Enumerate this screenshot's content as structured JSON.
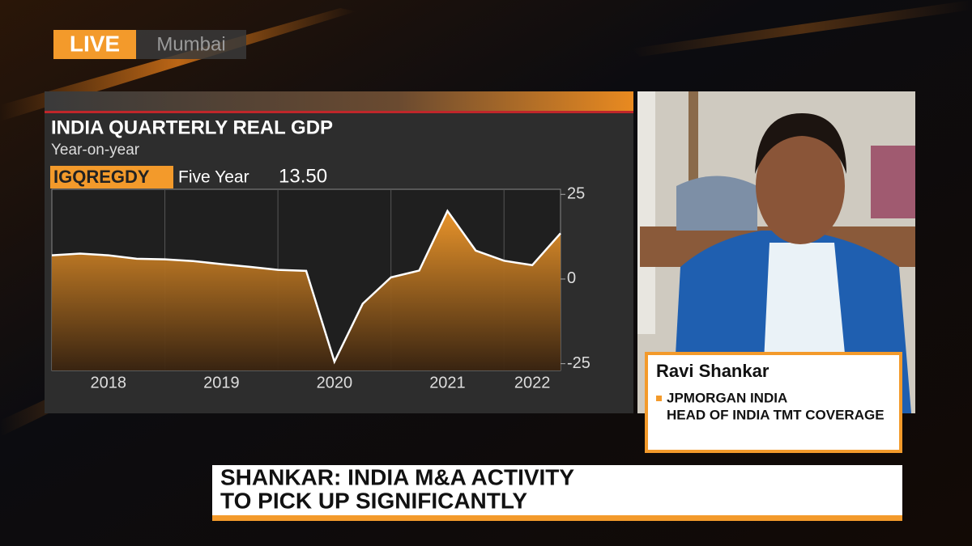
{
  "live": "LIVE",
  "location": "Mumbai",
  "chart_data": {
    "type": "area",
    "title": "INDIA QUARTERLY REAL GDP",
    "subtitle": "Year-on-year",
    "ticker": "IGQREGDY",
    "period": "Five Year",
    "last_value": "13.50",
    "x": [
      2018,
      2018.25,
      2018.5,
      2018.75,
      2019,
      2019.25,
      2019.5,
      2019.75,
      2020,
      2020.25,
      2020.5,
      2020.75,
      2021,
      2021.25,
      2021.5,
      2021.75,
      2022,
      2022.25,
      2022.5
    ],
    "values": [
      7.0,
      7.5,
      7.0,
      6.0,
      5.8,
      5.3,
      4.4,
      3.6,
      2.7,
      2.4,
      -24.4,
      -7.3,
      0.5,
      2.5,
      20.1,
      8.4,
      5.4,
      4.1,
      13.5
    ],
    "color": "#f39a2b",
    "xlim": [
      2018,
      2022.5
    ],
    "xticks": [
      {
        "value": 2018.5,
        "label": "2018"
      },
      {
        "value": 2019.5,
        "label": "2019"
      },
      {
        "value": 2020.5,
        "label": "2020"
      },
      {
        "value": 2021.5,
        "label": "2021"
      },
      {
        "value": 2022.25,
        "label": "2022"
      }
    ],
    "xgrid": [
      2019,
      2020,
      2021,
      2022
    ],
    "ylim": [
      -27,
      26.5
    ],
    "yticks": [
      25,
      0,
      -25
    ]
  },
  "guest": {
    "name": "Ravi Shankar",
    "company": "JPMORGAN INDIA",
    "role": "HEAD OF INDIA TMT COVERAGE"
  },
  "headline": [
    "SHANKAR: INDIA M&A ACTIVITY",
    "TO PICK UP SIGNIFICANTLY"
  ]
}
